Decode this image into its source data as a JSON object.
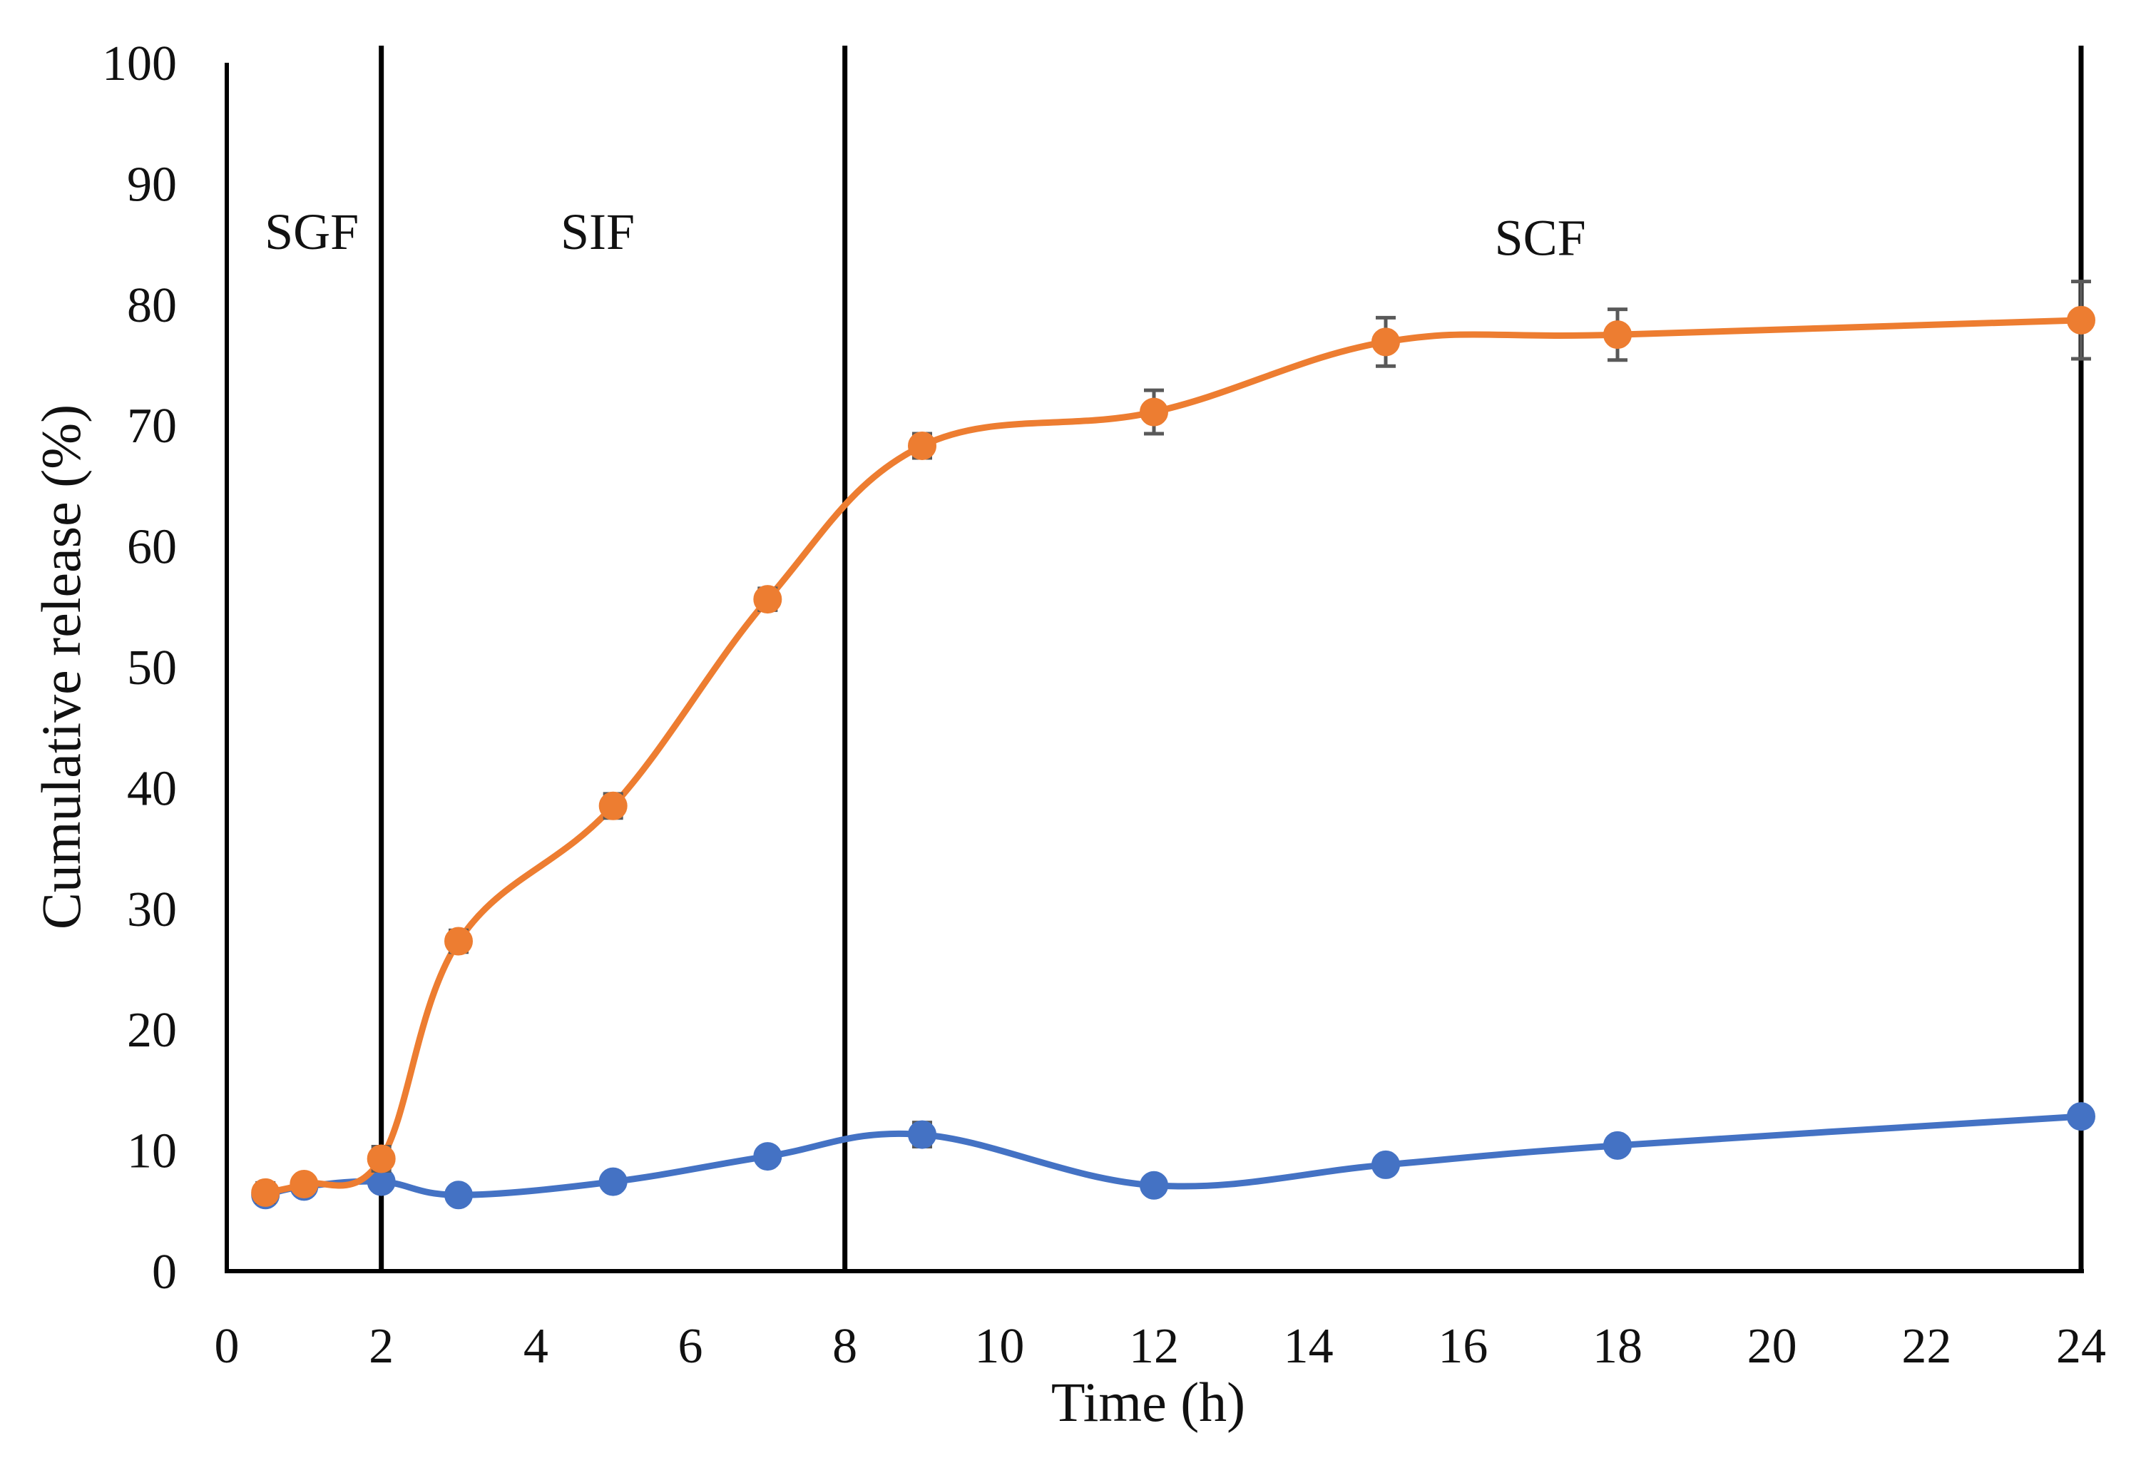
{
  "chart_data": {
    "type": "line",
    "title": "",
    "xlabel": "Time (h)",
    "ylabel": "Cumulative release (%)",
    "xlim": [
      0,
      24
    ],
    "ylim": [
      0,
      100
    ],
    "x_ticks": [
      "0",
      "2",
      "4",
      "6",
      "8",
      "10",
      "12",
      "14",
      "16",
      "18",
      "20",
      "22",
      "24"
    ],
    "y_ticks": [
      "0",
      "10",
      "20",
      "30",
      "40",
      "50",
      "60",
      "70",
      "80",
      "90",
      "100"
    ],
    "grid": false,
    "legend": "none",
    "phase_boundaries": [
      2,
      8,
      24
    ],
    "phase_labels": [
      {
        "text": "SGF",
        "x": 1.1,
        "y": 86
      },
      {
        "text": "SIF",
        "x": 4.8,
        "y": 86
      },
      {
        "text": "SCF",
        "x": 17.0,
        "y": 85.5
      }
    ],
    "series": [
      {
        "color": "#ED7D31",
        "x": [
          0.5,
          1,
          2,
          3,
          5,
          7,
          9,
          12,
          15,
          18,
          24
        ],
        "y": [
          6.5,
          7.2,
          9.3,
          27.3,
          38.5,
          55.6,
          68.3,
          71.1,
          76.9,
          77.5,
          78.7
        ],
        "error": [
          0.8,
          0.6,
          1.0,
          0.9,
          1.0,
          0.9,
          1.0,
          1.8,
          2.0,
          2.1,
          3.2
        ]
      },
      {
        "color": "#4472C4",
        "x": [
          0.5,
          1,
          2,
          3,
          5,
          7,
          9,
          12,
          15,
          18,
          24
        ],
        "y": [
          6.3,
          7.0,
          7.4,
          6.3,
          7.4,
          9.5,
          11.3,
          7.1,
          8.8,
          10.4,
          12.8
        ],
        "error": [
          0.6,
          0.5,
          0.5,
          0.5,
          0.6,
          0.6,
          1.0,
          0.6,
          0.6,
          0.6,
          0.6
        ]
      }
    ]
  }
}
